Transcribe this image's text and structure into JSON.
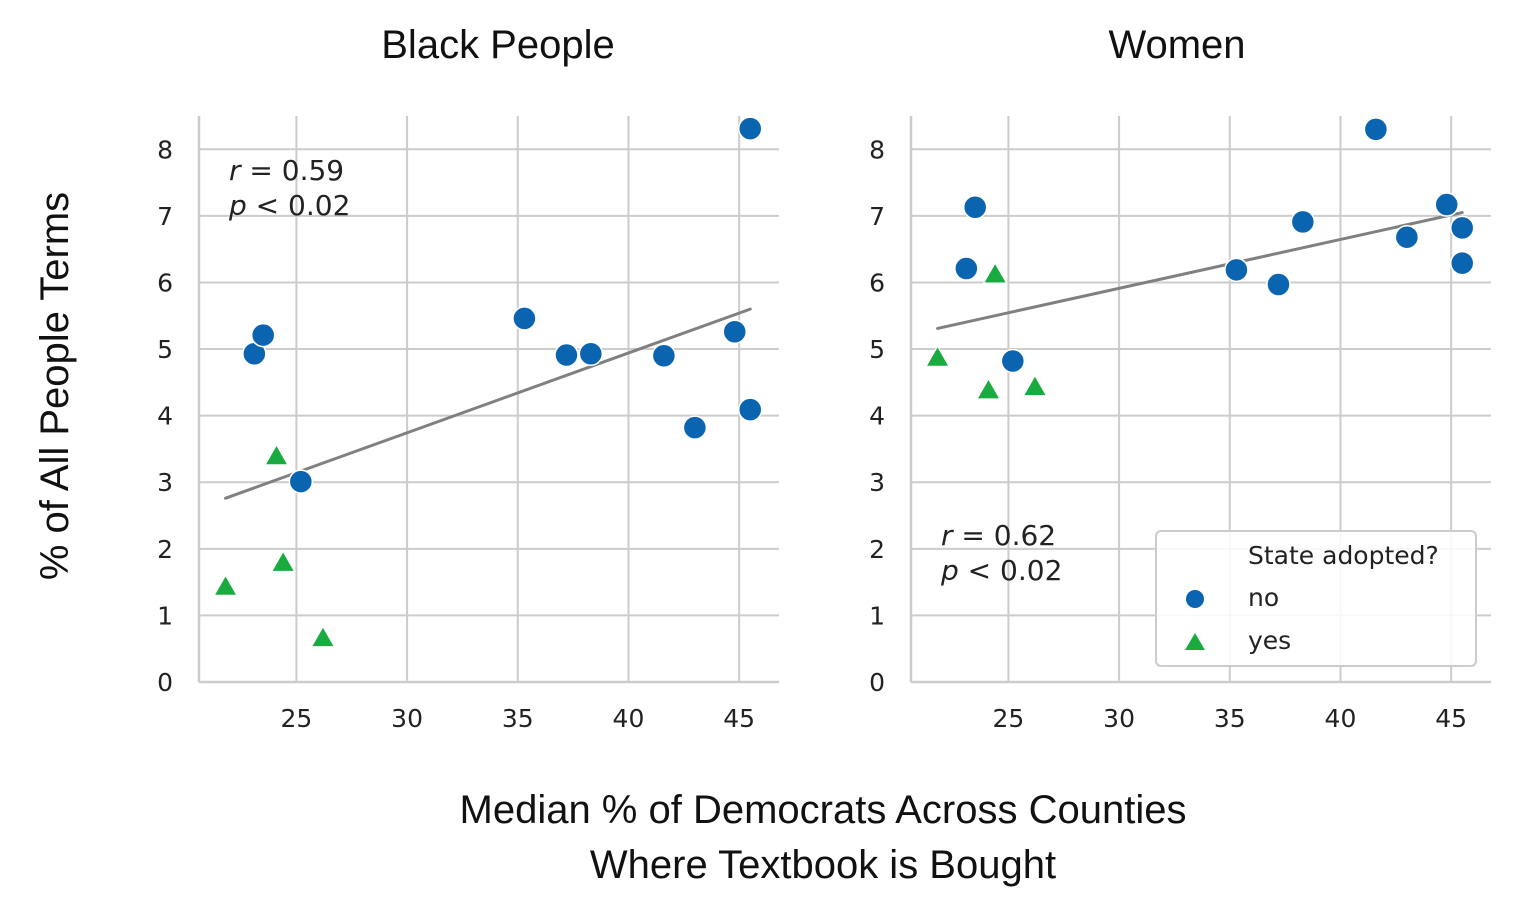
{
  "figure": {
    "xlabel_lines": [
      "Median % of Democrats Across Counties",
      "Where Textbook is Bought"
    ],
    "ylabel": "% of All People Terms",
    "colors": {
      "no": "#0a64b0",
      "yes": "#1aab40",
      "trend": "#808080"
    }
  },
  "legend": {
    "title": "State adopted?",
    "entries": [
      {
        "label": "no",
        "marker": "circle",
        "color": "#0a64b0"
      },
      {
        "label": "yes",
        "marker": "triangle",
        "color": "#1aab40"
      }
    ],
    "placement": "lower-right of second panel"
  },
  "chart_data": [
    {
      "type": "scatter",
      "title": "Black People",
      "xlim": [
        20.6,
        46.8
      ],
      "ylim": [
        0,
        8.5
      ],
      "xticks": [
        25,
        30,
        35,
        40,
        45
      ],
      "yticks": [
        0,
        1,
        2,
        3,
        4,
        5,
        6,
        7,
        8
      ],
      "grid": true,
      "annotation": {
        "r_label": "r",
        "r_text": " = 0.59",
        "p_label": "p",
        "p_text": " < 0.02",
        "position": "top-left"
      },
      "trendline": {
        "x": [
          21.8,
          45.5
        ],
        "y": [
          2.76,
          5.6
        ]
      },
      "series": [
        {
          "name": "no",
          "marker": "circle",
          "points": [
            {
              "x": 23.1,
              "y": 4.93
            },
            {
              "x": 23.5,
              "y": 5.21
            },
            {
              "x": 25.2,
              "y": 3.01
            },
            {
              "x": 35.3,
              "y": 5.46
            },
            {
              "x": 37.2,
              "y": 4.91
            },
            {
              "x": 38.3,
              "y": 4.93
            },
            {
              "x": 41.6,
              "y": 4.9
            },
            {
              "x": 43.0,
              "y": 3.82
            },
            {
              "x": 44.8,
              "y": 5.26
            },
            {
              "x": 45.5,
              "y": 4.09
            },
            {
              "x": 45.5,
              "y": 8.31
            }
          ]
        },
        {
          "name": "yes",
          "marker": "triangle",
          "points": [
            {
              "x": 21.8,
              "y": 1.43
            },
            {
              "x": 24.1,
              "y": 3.39
            },
            {
              "x": 24.4,
              "y": 1.79
            },
            {
              "x": 26.2,
              "y": 0.66
            }
          ]
        }
      ]
    },
    {
      "type": "scatter",
      "title": "Women",
      "xlim": [
        20.6,
        46.8
      ],
      "ylim": [
        0,
        8.5
      ],
      "xticks": [
        25,
        30,
        35,
        40,
        45
      ],
      "yticks": [
        0,
        1,
        2,
        3,
        4,
        5,
        6,
        7,
        8
      ],
      "grid": true,
      "annotation": {
        "r_label": "r",
        "r_text": " = 0.62",
        "p_label": "p",
        "p_text": " < 0.02",
        "position": "lower-left"
      },
      "trendline": {
        "x": [
          21.8,
          45.5
        ],
        "y": [
          5.31,
          7.05
        ]
      },
      "series": [
        {
          "name": "no",
          "marker": "circle",
          "points": [
            {
              "x": 23.1,
              "y": 6.21
            },
            {
              "x": 23.5,
              "y": 7.13
            },
            {
              "x": 25.2,
              "y": 4.82
            },
            {
              "x": 35.3,
              "y": 6.19
            },
            {
              "x": 37.2,
              "y": 5.97
            },
            {
              "x": 38.3,
              "y": 6.91
            },
            {
              "x": 41.6,
              "y": 8.3
            },
            {
              "x": 43.0,
              "y": 6.68
            },
            {
              "x": 44.8,
              "y": 7.17
            },
            {
              "x": 45.5,
              "y": 6.82
            },
            {
              "x": 45.5,
              "y": 6.29
            }
          ]
        },
        {
          "name": "yes",
          "marker": "triangle",
          "points": [
            {
              "x": 21.8,
              "y": 4.87
            },
            {
              "x": 24.1,
              "y": 4.38
            },
            {
              "x": 24.4,
              "y": 6.12
            },
            {
              "x": 26.2,
              "y": 4.43
            }
          ]
        }
      ]
    }
  ]
}
